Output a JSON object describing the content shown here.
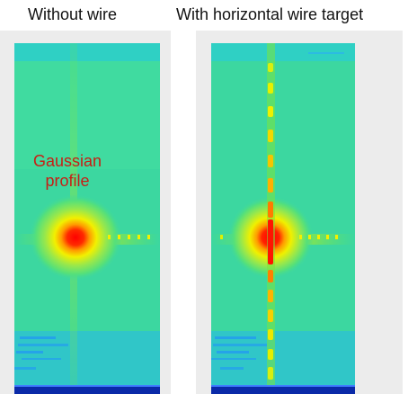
{
  "titles": {
    "left": "Without wire",
    "right": "With horizontal wire target"
  },
  "annotation": {
    "line1": "Gaussian",
    "line2": "profile"
  },
  "colors": {
    "background": "#3cd7a0",
    "hot_spot": "#ff1a00",
    "halo_yellow": "#f0f000",
    "halo_green": "#6ee65a",
    "noise_blue": "#1e8cff",
    "baseline": "#0a2aa8",
    "annotation_text": "#c81e14"
  },
  "icons": {
    "left_panel": "beam-profile-image-without-wire",
    "right_panel": "beam-profile-image-with-wire"
  }
}
